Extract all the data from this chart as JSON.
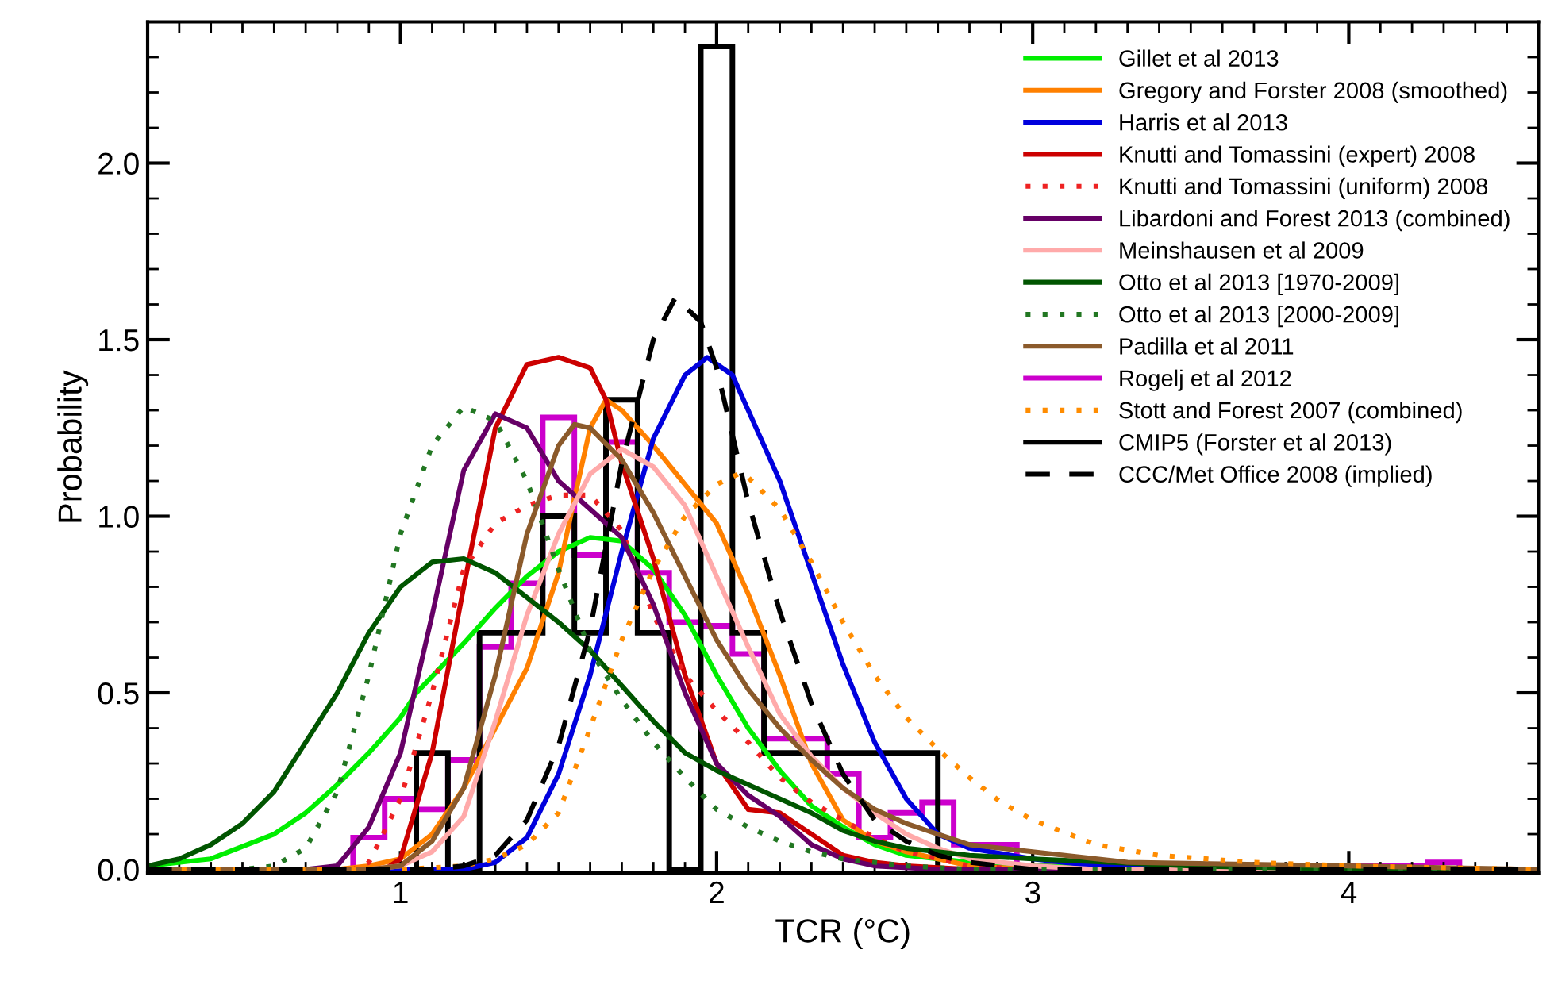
{
  "chart_data": {
    "type": "line",
    "xlabel": "TCR (°C)",
    "ylabel": "Probability",
    "xlim": [
      0.2,
      4.6
    ],
    "ylim": [
      -0.01,
      2.4
    ],
    "xticks": [
      1,
      2,
      3,
      4
    ],
    "yticks": [
      {
        "value": 0,
        "label": "0.0"
      },
      {
        "value": 0.5,
        "label": "0.5"
      },
      {
        "value": 1,
        "label": "1.0"
      },
      {
        "value": 1.5,
        "label": "1.5"
      },
      {
        "value": 2,
        "label": "2.0"
      }
    ],
    "legend": "top right",
    "grid": false,
    "series": [
      {
        "name": "Gillet et al 2013",
        "color": "#00ee00",
        "line_style": "solid",
        "x": [
          0.2,
          0.4,
          0.6,
          0.7,
          0.8,
          0.9,
          1.0,
          1.05,
          1.2,
          1.3,
          1.4,
          1.5,
          1.6,
          1.7,
          1.8,
          1.9,
          2.0,
          2.1,
          2.2,
          2.3,
          2.4,
          2.5,
          2.6,
          2.8,
          3.0,
          3.5,
          4.6
        ],
        "values": [
          0.01,
          0.03,
          0.1,
          0.16,
          0.24,
          0.33,
          0.43,
          0.5,
          0.64,
          0.74,
          0.83,
          0.9,
          0.94,
          0.93,
          0.85,
          0.72,
          0.55,
          0.4,
          0.28,
          0.18,
          0.12,
          0.07,
          0.04,
          0.02,
          0.01,
          0.0,
          0.0
        ]
      },
      {
        "name": "Gregory and Forster 2008 (smoothed)",
        "color": "#ff8000",
        "line_style": "solid",
        "x": [
          0.2,
          0.8,
          0.9,
          1.0,
          1.1,
          1.2,
          1.3,
          1.4,
          1.5,
          1.55,
          1.6,
          1.65,
          1.7,
          1.8,
          1.9,
          2.0,
          2.1,
          2.2,
          2.3,
          2.4,
          2.5,
          2.6,
          2.7,
          2.8,
          3.0,
          4.6
        ],
        "values": [
          0,
          0,
          0.01,
          0.03,
          0.1,
          0.23,
          0.4,
          0.57,
          0.84,
          1.05,
          1.25,
          1.33,
          1.3,
          1.2,
          1.09,
          0.98,
          0.78,
          0.55,
          0.3,
          0.14,
          0.08,
          0.05,
          0.03,
          0.01,
          0.0,
          0
        ]
      },
      {
        "name": "Harris et al 2013",
        "color": "#0000dd",
        "line_style": "solid",
        "x": [
          0.2,
          1.2,
          1.3,
          1.4,
          1.5,
          1.6,
          1.7,
          1.8,
          1.9,
          1.97,
          2.05,
          2.1,
          2.2,
          2.3,
          2.4,
          2.5,
          2.6,
          2.7,
          2.8,
          3.0,
          3.2,
          3.5,
          4.6
        ],
        "values": [
          0,
          0,
          0.02,
          0.09,
          0.27,
          0.55,
          0.9,
          1.22,
          1.4,
          1.45,
          1.4,
          1.3,
          1.1,
          0.84,
          0.58,
          0.36,
          0.2,
          0.1,
          0.06,
          0.03,
          0.01,
          0,
          0
        ]
      },
      {
        "name": "Knutti and Tomassini (expert) 2008",
        "color": "#cc0000",
        "line_style": "solid",
        "x": [
          0.2,
          0.95,
          1.0,
          1.1,
          1.2,
          1.3,
          1.4,
          1.5,
          1.6,
          1.65,
          1.7,
          1.8,
          1.9,
          2.0,
          2.1,
          2.2,
          2.3,
          2.4,
          2.5,
          2.6,
          2.8,
          4.6
        ],
        "values": [
          0,
          0,
          0.03,
          0.33,
          0.8,
          1.25,
          1.43,
          1.45,
          1.42,
          1.33,
          1.15,
          0.88,
          0.55,
          0.3,
          0.17,
          0.16,
          0.1,
          0.04,
          0.02,
          0.01,
          0,
          0
        ]
      },
      {
        "name": "Knutti and Tomassini (uniform) 2008",
        "color": "#ee2222",
        "line_style": "dotted",
        "x": [
          0.2,
          0.85,
          0.9,
          1.0,
          1.1,
          1.2,
          1.3,
          1.4,
          1.5,
          1.6,
          1.7,
          1.8,
          1.9,
          2.0,
          2.1,
          2.2,
          2.3,
          2.4,
          2.5,
          2.6,
          2.7,
          2.8,
          3.0,
          4.6
        ],
        "values": [
          0,
          0,
          0.02,
          0.2,
          0.5,
          0.85,
          0.98,
          1.03,
          1.06,
          1.06,
          0.96,
          0.72,
          0.55,
          0.45,
          0.36,
          0.26,
          0.19,
          0.14,
          0.09,
          0.05,
          0.03,
          0.01,
          0,
          0
        ]
      },
      {
        "name": "Libardoni and Forest 2013 (combined)",
        "color": "#660066",
        "line_style": "solid",
        "x": [
          0.2,
          0.7,
          0.8,
          0.9,
          1.0,
          1.1,
          1.2,
          1.3,
          1.4,
          1.5,
          1.6,
          1.7,
          1.8,
          1.9,
          2.0,
          2.1,
          2.2,
          2.3,
          2.4,
          2.5,
          2.7,
          4.6
        ],
        "values": [
          0,
          0,
          0.01,
          0.12,
          0.33,
          0.72,
          1.13,
          1.29,
          1.25,
          1.1,
          1.02,
          0.94,
          0.75,
          0.5,
          0.3,
          0.21,
          0.15,
          0.07,
          0.03,
          0.01,
          0,
          0
        ]
      },
      {
        "name": "Meinshausen et al 2009",
        "color": "#ffaaaa",
        "line_style": "solid",
        "x": [
          0.2,
          0.9,
          1.0,
          1.1,
          1.2,
          1.3,
          1.4,
          1.5,
          1.6,
          1.7,
          1.8,
          1.9,
          2.0,
          2.1,
          2.2,
          2.3,
          2.4,
          2.5,
          2.6,
          2.7,
          2.8,
          3.0,
          3.2,
          4.6
        ],
        "values": [
          0,
          0,
          0.01,
          0.05,
          0.15,
          0.42,
          0.72,
          0.95,
          1.12,
          1.19,
          1.14,
          1.03,
          0.83,
          0.63,
          0.44,
          0.32,
          0.23,
          0.16,
          0.1,
          0.06,
          0.03,
          0.01,
          0,
          0
        ]
      },
      {
        "name": "Otto et al 2013 [1970-2009]",
        "color": "#005500",
        "line_style": "solid",
        "x": [
          0.2,
          0.3,
          0.4,
          0.5,
          0.6,
          0.7,
          0.8,
          0.9,
          1.0,
          1.1,
          1.2,
          1.3,
          1.4,
          1.5,
          1.6,
          1.7,
          1.8,
          1.9,
          2.0,
          2.1,
          2.2,
          2.3,
          2.4,
          2.5,
          2.6,
          2.7,
          2.8,
          3.0,
          3.5,
          4.0,
          4.6
        ],
        "values": [
          0.01,
          0.03,
          0.07,
          0.13,
          0.22,
          0.36,
          0.5,
          0.67,
          0.8,
          0.87,
          0.88,
          0.84,
          0.77,
          0.7,
          0.62,
          0.52,
          0.42,
          0.33,
          0.28,
          0.24,
          0.2,
          0.16,
          0.11,
          0.08,
          0.06,
          0.05,
          0.04,
          0.03,
          0.01,
          0,
          0
        ]
      },
      {
        "name": "Otto et al 2013 [2000-2009]",
        "color": "#227722",
        "line_style": "dotted",
        "x": [
          0.2,
          0.5,
          0.6,
          0.7,
          0.8,
          0.9,
          1.0,
          1.1,
          1.2,
          1.3,
          1.4,
          1.5,
          1.6,
          1.7,
          1.8,
          1.9,
          2.0,
          2.1,
          2.2,
          2.3,
          2.4,
          2.6,
          2.8,
          4.6
        ],
        "values": [
          0,
          0,
          0.01,
          0.06,
          0.22,
          0.55,
          0.95,
          1.2,
          1.31,
          1.27,
          1.1,
          0.85,
          0.62,
          0.48,
          0.36,
          0.26,
          0.17,
          0.12,
          0.08,
          0.05,
          0.03,
          0.01,
          0,
          0
        ]
      },
      {
        "name": "Padilla et al 2011",
        "color": "#8b5a2b",
        "line_style": "solid",
        "x": [
          0.2,
          0.9,
          1.0,
          1.1,
          1.2,
          1.3,
          1.4,
          1.5,
          1.55,
          1.6,
          1.7,
          1.8,
          1.9,
          2.0,
          2.1,
          2.2,
          2.3,
          2.4,
          2.5,
          2.6,
          2.7,
          2.8,
          3.0,
          3.3,
          4.0,
          4.6
        ],
        "values": [
          0,
          0,
          0.01,
          0.08,
          0.23,
          0.55,
          0.95,
          1.2,
          1.26,
          1.25,
          1.16,
          1.01,
          0.83,
          0.65,
          0.51,
          0.4,
          0.31,
          0.23,
          0.17,
          0.13,
          0.1,
          0.07,
          0.05,
          0.02,
          0.01,
          0
        ]
      },
      {
        "name": "Rogelj et al 2012",
        "color": "#cc00cc",
        "type": "histogram",
        "line_style": "solid",
        "bins": [
          0.85,
          0.95,
          1.05,
          1.15,
          1.25,
          1.35,
          1.45,
          1.55,
          1.65,
          1.75,
          1.85,
          1.95,
          2.05,
          2.15,
          2.25,
          2.35,
          2.45,
          2.55,
          2.65,
          2.75,
          2.95,
          4.25,
          4.35
        ],
        "values": [
          0.09,
          0.2,
          0.17,
          0.31,
          0.63,
          0.81,
          1.28,
          0.89,
          1.21,
          0.84,
          0.7,
          0.69,
          0.61,
          0.37,
          0.37,
          0.27,
          0.09,
          0.16,
          0.19,
          0.07,
          0.01,
          0.02
        ]
      },
      {
        "name": "Stott and Forest 2007 (combined)",
        "color": "#ff8c00",
        "line_style": "dotted",
        "x": [
          0.2,
          1.0,
          1.2,
          1.3,
          1.4,
          1.5,
          1.6,
          1.7,
          1.8,
          1.9,
          2.0,
          2.07,
          2.1,
          2.2,
          2.3,
          2.4,
          2.5,
          2.6,
          2.7,
          2.8,
          2.9,
          3.0,
          3.2,
          3.4,
          3.7,
          4.0,
          4.6
        ],
        "values": [
          0,
          0,
          0.01,
          0.03,
          0.07,
          0.16,
          0.4,
          0.65,
          0.85,
          1.0,
          1.09,
          1.12,
          1.11,
          1.02,
          0.87,
          0.7,
          0.55,
          0.43,
          0.34,
          0.26,
          0.19,
          0.14,
          0.07,
          0.04,
          0.02,
          0.01,
          0
        ]
      },
      {
        "name": "CMIP5 (Forster et al 2013)",
        "color": "#000000",
        "type": "histogram",
        "line_style": "solid",
        "bins": [
          1.05,
          1.15,
          1.25,
          1.35,
          1.45,
          1.55,
          1.65,
          1.75,
          1.85,
          1.95,
          2.05,
          2.15,
          2.7
        ],
        "values": [
          0.33,
          0,
          0.67,
          0.67,
          1.0,
          0.67,
          1.33,
          0.67,
          0,
          2.33,
          0.67,
          0.33
        ]
      },
      {
        "name": "CCC/Met Office 2008 (implied)",
        "color": "#000000",
        "line_style": "dashed",
        "x": [
          0.2,
          1.1,
          1.2,
          1.3,
          1.4,
          1.5,
          1.6,
          1.7,
          1.8,
          1.87,
          1.95,
          2.0,
          2.1,
          2.2,
          2.3,
          2.4,
          2.5,
          2.6,
          2.7,
          2.8,
          3.0,
          4.6
        ],
        "values": [
          0,
          0,
          0.01,
          0.04,
          0.14,
          0.35,
          0.68,
          1.15,
          1.5,
          1.62,
          1.55,
          1.42,
          1.04,
          0.73,
          0.47,
          0.27,
          0.14,
          0.08,
          0.04,
          0.02,
          0,
          0
        ]
      }
    ]
  }
}
